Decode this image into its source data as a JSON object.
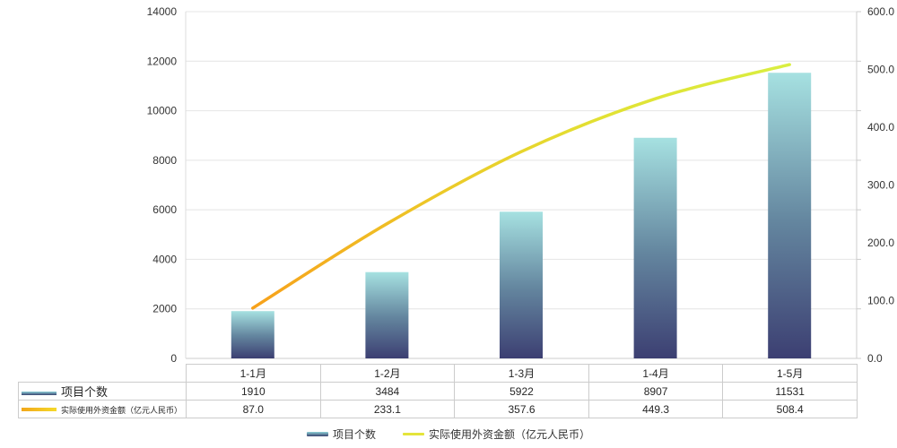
{
  "chart_data": {
    "type": "combo_bar_line",
    "title": "",
    "categories": [
      "1-1月",
      "1-2月",
      "1-3月",
      "1-4月",
      "1-5月"
    ],
    "series": [
      {
        "name": "项目个数",
        "type": "bar",
        "y_axis": "left",
        "values": [
          1910,
          3484,
          5922,
          8907,
          11531
        ]
      },
      {
        "name": "实际使用外资金额（亿元人民币）",
        "type": "line",
        "y_axis": "right",
        "values": [
          87.0,
          233.1,
          357.6,
          449.3,
          508.4
        ]
      }
    ],
    "y_left": {
      "min": 0,
      "max": 14000,
      "tick_step": 2000,
      "tick_labels": [
        "0",
        "2000",
        "4000",
        "6000",
        "8000",
        "10000",
        "12000",
        "14000"
      ]
    },
    "y_right": {
      "min": 0,
      "max": 600,
      "tick_step": 100,
      "tick_labels": [
        "0.0",
        "100.0",
        "200.0",
        "300.0",
        "400.0",
        "500.0",
        "600.0"
      ]
    },
    "grid": "horizontal-only",
    "legend_position": "bottom"
  },
  "table": {
    "header_categories": [
      "1-1月",
      "1-2月",
      "1-3月",
      "1-4月",
      "1-5月"
    ],
    "rows": [
      {
        "label": "项目个数",
        "swatch": "bar",
        "values": [
          "1910",
          "3484",
          "5922",
          "8907",
          "11531"
        ]
      },
      {
        "label": "实际使用外资金额（亿元人民币）",
        "swatch": "line",
        "values": [
          "87.0",
          "233.1",
          "357.6",
          "449.3",
          "508.4"
        ]
      }
    ]
  },
  "legend": {
    "items": [
      {
        "label": "项目个数",
        "series": "bar"
      },
      {
        "label": "实际使用外资金额（亿元人民币）",
        "series": "line"
      }
    ]
  },
  "colors": {
    "bar_gradient_top": "#a6e1e1",
    "bar_gradient_mid": "#64869f",
    "bar_gradient_bottom": "#3c3f72",
    "line_gradient_start": "#f7a11b",
    "line_gradient_mid1": "#ecc928",
    "line_gradient_mid2": "#e2e133",
    "line_gradient_end": "#d9ee41",
    "line_legend_swatch": "#e4e43b",
    "grid_line": "#e4e4e4",
    "axis_line": "#cccccc",
    "axis_text": "#333333",
    "table_border": "#cccccc",
    "table_text": "#262626",
    "background": "#ffffff"
  }
}
